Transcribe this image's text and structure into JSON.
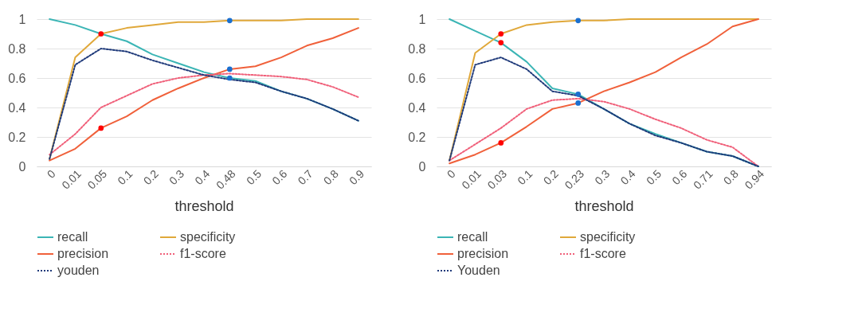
{
  "chart_data": [
    {
      "type": "line",
      "xlabel": "threshold",
      "categories": [
        "0",
        "0.01",
        "0.05",
        "0.1",
        "0.2",
        "0.3",
        "0.4",
        "0.48",
        "0.5",
        "0.6",
        "0.7",
        "0.8",
        "0.9"
      ],
      "ylim": [
        0,
        1
      ],
      "yticks": [
        0,
        0.2,
        0.4,
        0.6,
        0.8,
        1
      ],
      "grid": "y",
      "legend": "bottom",
      "series": [
        {
          "name": "recall",
          "color": "#3bb5b5",
          "line_style": "solid",
          "values": [
            1.0,
            0.96,
            0.9,
            0.85,
            0.76,
            0.7,
            0.64,
            0.6,
            0.58,
            0.51,
            0.46,
            0.39,
            0.31
          ]
        },
        {
          "name": "specificity",
          "color": "#e0a83a",
          "line_style": "solid",
          "values": [
            0.05,
            0.74,
            0.9,
            0.94,
            0.96,
            0.98,
            0.98,
            0.99,
            0.99,
            0.99,
            1.0,
            1.0,
            1.0
          ]
        },
        {
          "name": "precision",
          "color": "#f0603a",
          "line_style": "solid",
          "values": [
            0.04,
            0.12,
            0.26,
            0.34,
            0.45,
            0.53,
            0.6,
            0.66,
            0.68,
            0.74,
            0.82,
            0.87,
            0.94
          ]
        },
        {
          "name": "f1-score",
          "color": "#f0607a",
          "line_style": "dotted",
          "values": [
            0.08,
            0.22,
            0.4,
            0.48,
            0.56,
            0.6,
            0.62,
            0.63,
            0.62,
            0.61,
            0.59,
            0.54,
            0.47
          ]
        },
        {
          "name": "youden",
          "color": "#1f3a7a",
          "line_style": "dotted",
          "values": [
            0.05,
            0.69,
            0.8,
            0.78,
            0.72,
            0.67,
            0.62,
            0.59,
            0.57,
            0.51,
            0.46,
            0.39,
            0.31
          ]
        },
        {
          "type": "scatter",
          "color": "#ff0000",
          "marker": "circle",
          "x": [
            "0.05",
            "0.05"
          ],
          "values": [
            0.9,
            0.26
          ]
        },
        {
          "type": "scatter",
          "color": "#1a6fd0",
          "marker": "circle",
          "x": [
            "0.48",
            "0.48",
            "0.48"
          ],
          "values": [
            0.99,
            0.66,
            0.6
          ]
        }
      ]
    },
    {
      "type": "line",
      "xlabel": "threshold",
      "categories": [
        "0",
        "0.01",
        "0.03",
        "0.1",
        "0.2",
        "0.23",
        "0.3",
        "0.4",
        "0.5",
        "0.6",
        "0.71",
        "0.8",
        "0.94"
      ],
      "ylim": [
        0,
        1
      ],
      "yticks": [
        0,
        0.2,
        0.4,
        0.6,
        0.8,
        1
      ],
      "grid": "y",
      "legend": "bottom",
      "series": [
        {
          "name": "recall",
          "color": "#3bb5b5",
          "line_style": "solid",
          "values": [
            1.0,
            0.92,
            0.84,
            0.71,
            0.53,
            0.49,
            0.39,
            0.29,
            0.22,
            0.16,
            0.1,
            0.07,
            0.0
          ]
        },
        {
          "name": "specificity",
          "color": "#e0a83a",
          "line_style": "solid",
          "values": [
            0.04,
            0.77,
            0.9,
            0.96,
            0.98,
            0.99,
            0.99,
            1.0,
            1.0,
            1.0,
            1.0,
            1.0,
            1.0
          ]
        },
        {
          "name": "precision",
          "color": "#f0603a",
          "line_style": "solid",
          "values": [
            0.02,
            0.08,
            0.16,
            0.27,
            0.39,
            0.43,
            0.51,
            0.57,
            0.64,
            0.74,
            0.83,
            0.95,
            1.0
          ]
        },
        {
          "name": "f1-score",
          "color": "#f0607a",
          "line_style": "dotted",
          "values": [
            0.04,
            0.15,
            0.26,
            0.39,
            0.45,
            0.46,
            0.44,
            0.39,
            0.32,
            0.26,
            0.18,
            0.13,
            0.0
          ]
        },
        {
          "name": "Youden",
          "color": "#1f3a7a",
          "line_style": "dotted",
          "values": [
            0.04,
            0.69,
            0.74,
            0.66,
            0.51,
            0.48,
            0.39,
            0.29,
            0.21,
            0.16,
            0.1,
            0.07,
            0.0
          ]
        },
        {
          "type": "scatter",
          "color": "#ff0000",
          "marker": "circle",
          "x": [
            "0.03",
            "0.03",
            "0.03"
          ],
          "values": [
            0.9,
            0.84,
            0.16
          ]
        },
        {
          "type": "scatter",
          "color": "#1a6fd0",
          "marker": "circle",
          "x": [
            "0.23",
            "0.23",
            "0.23"
          ],
          "values": [
            0.99,
            0.49,
            0.43
          ]
        }
      ]
    }
  ]
}
